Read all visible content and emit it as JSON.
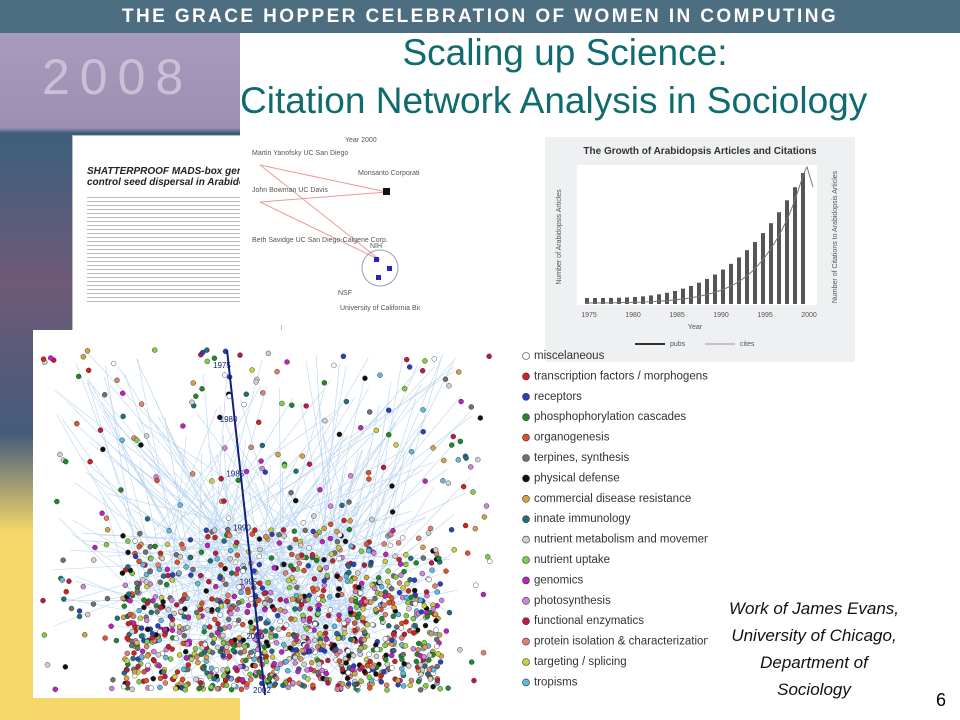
{
  "header": {
    "banner": "THE GRACE HOPPER CELEBRATION OF WOMEN IN COMPUTING",
    "year": "2008"
  },
  "title": {
    "line1": "Scaling up Science:",
    "line2": "Citation Network Analysis in Sociology"
  },
  "paper": {
    "title": "SHATTERPROOF MADS-box genes control seed dispersal in Arabidopsis"
  },
  "collab_network": {
    "title": "Year 2000",
    "nodes": [
      "Martin Yanofsky UC San Diego",
      "John Bowman UC Davis",
      "Beth Savidge UC San Diego-Calgene Corp.",
      "Monsanto Corporation",
      "NIH",
      "NSF",
      "University of California BioSTAR"
    ]
  },
  "growth_chart": {
    "title": "The Growth of Arabidopsis Articles and Citations",
    "x_label": "Year",
    "y_label": "Number of Arabidopsis Articles",
    "y2_label": "Number of Citations to Arabidopsis Articles",
    "x_ticks": [
      "1975",
      "1980",
      "1985",
      "1990",
      "1995",
      "2000"
    ],
    "legend": [
      "pubs",
      "cites"
    ]
  },
  "citation_network": {
    "years": [
      "1975",
      "1980",
      "1985",
      "1990",
      "1995",
      "2000",
      "2002"
    ]
  },
  "legend": [
    {
      "label": "miscelaneous",
      "color": "#ffffff"
    },
    {
      "label": "transcription factors / morphogens",
      "color": "#d42020"
    },
    {
      "label": "receptors",
      "color": "#2a3fbf"
    },
    {
      "label": "phosphophorylation cascades",
      "color": "#1f8a2a"
    },
    {
      "label": "organogenesis",
      "color": "#e0502a"
    },
    {
      "label": "terpines, synthesis",
      "color": "#707070"
    },
    {
      "label": "physical defense",
      "color": "#111111"
    },
    {
      "label": "commercial disease resistance",
      "color": "#d8a040"
    },
    {
      "label": "innate immunology",
      "color": "#1f6f7f"
    },
    {
      "label": "nutrient metabolism and movement",
      "color": "#d0d0d0"
    },
    {
      "label": "nutrient uptake",
      "color": "#7fd040"
    },
    {
      "label": "genomics",
      "color": "#c020c0"
    },
    {
      "label": "photosynthesis",
      "color": "#d080e0"
    },
    {
      "label": "functional enzymatics",
      "color": "#c01840"
    },
    {
      "label": "protein isolation & characterization",
      "color": "#e08070"
    },
    {
      "label": "targeting / splicing",
      "color": "#c8d040"
    },
    {
      "label": "tropisms",
      "color": "#60b8e0"
    }
  ],
  "credit": [
    "Work of James Evans,",
    "University of Chicago,",
    "Department of",
    "Sociology"
  ],
  "page_number": "6"
}
